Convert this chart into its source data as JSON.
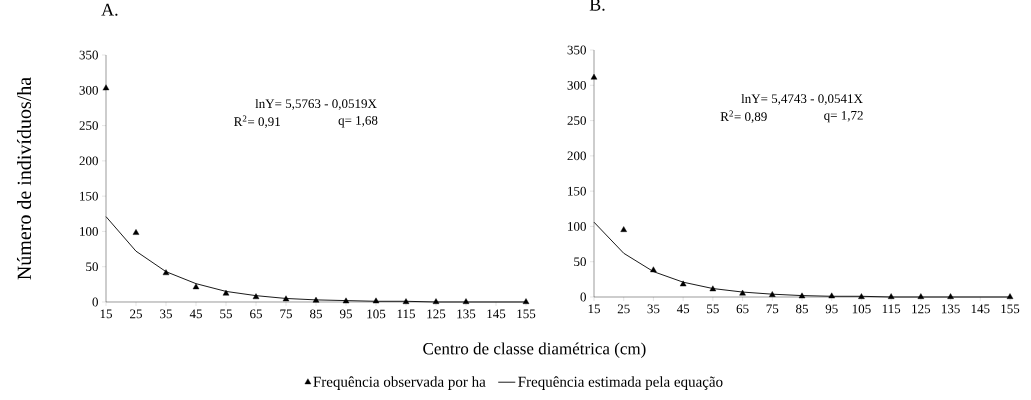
{
  "chart_data": [
    {
      "type": "scatter",
      "title": "A.",
      "ylabel": "Número de indivíduos/ha",
      "xlabel": "Centro de classe diamétrica (cm)",
      "x": [
        15,
        25,
        35,
        45,
        55,
        65,
        75,
        85,
        95,
        105,
        115,
        125,
        135,
        155
      ],
      "xlim": [
        15,
        155
      ],
      "xticks": [
        15,
        25,
        35,
        45,
        55,
        65,
        75,
        85,
        95,
        105,
        115,
        125,
        135,
        145,
        155
      ],
      "ylim": [
        0,
        350
      ],
      "yticks": [
        0,
        50,
        100,
        150,
        200,
        250,
        300,
        350
      ],
      "annotations": [
        "lnY= 5,5763 - 0,0519X",
        "R$^{2}$= 0,91",
        "q= 1,68"
      ],
      "series": [
        {
          "marker": "triangle",
          "color": "#000000",
          "values": [
            303,
            98,
            41,
            21,
            12,
            7,
            4,
            2,
            1,
            1,
            0,
            0,
            0,
            0
          ]
        },
        {
          "type": "line",
          "marker": "none",
          "color": "#000000",
          "x": [
            15,
            25,
            35,
            45,
            55,
            65,
            75,
            85,
            95,
            105,
            115,
            125,
            135,
            145,
            155
          ],
          "values": [
            121,
            72,
            43,
            26,
            15,
            9,
            5,
            3,
            2,
            1,
            1,
            0,
            0,
            0,
            0
          ]
        }
      ]
    },
    {
      "type": "scatter",
      "title": "B.",
      "legend": "bottom",
      "x": [
        15,
        25,
        35,
        45,
        55,
        65,
        75,
        85,
        95,
        105,
        115,
        125,
        135,
        155
      ],
      "xlim": [
        15,
        155
      ],
      "xticks": [
        15,
        25,
        35,
        45,
        55,
        65,
        75,
        85,
        95,
        105,
        115,
        125,
        135,
        145,
        155
      ],
      "ylim": [
        0,
        350
      ],
      "yticks": [
        0,
        50,
        100,
        150,
        200,
        250,
        300,
        350
      ],
      "annotations": [
        "lnY= 5,4743  - 0,0541X",
        "R$^{2}$= 0,89",
        "q= 1,72"
      ],
      "series": [
        {
          "name": "Frequência observada por ha",
          "marker": "triangle",
          "color": "#000000",
          "values": [
            311,
            95,
            38,
            18,
            11,
            5,
            3,
            1,
            1,
            0,
            0,
            0,
            0,
            0
          ]
        },
        {
          "name": "Frequência estimada pela equação",
          "type": "line",
          "marker": "none",
          "color": "#000000",
          "x": [
            15,
            25,
            35,
            45,
            55,
            65,
            75,
            85,
            95,
            105,
            115,
            125,
            135,
            145,
            155
          ],
          "values": [
            106,
            62,
            36,
            21,
            12,
            7,
            4,
            2,
            1,
            1,
            0,
            0,
            0,
            0,
            0
          ]
        }
      ]
    }
  ]
}
